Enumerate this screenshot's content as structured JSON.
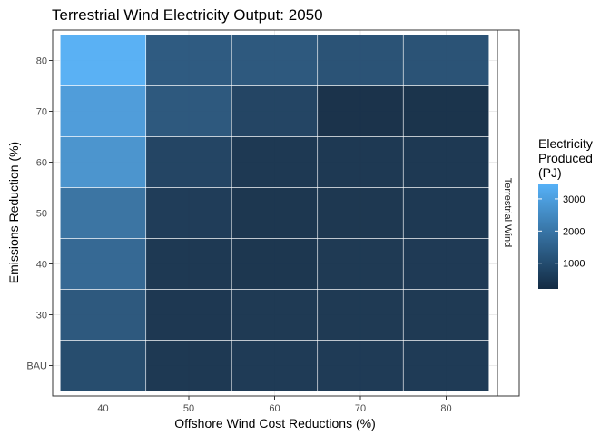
{
  "chart_data": {
    "type": "heatmap",
    "title": "Terrestrial Wind Electricity Output: 2050",
    "xlabel": "Offshore Wind Cost Reductions (%)",
    "ylabel": "Emissions Reduction (%)",
    "x_categories": [
      "40",
      "50",
      "60",
      "70",
      "80"
    ],
    "y_categories": [
      "BAU",
      "30",
      "40",
      "50",
      "60",
      "70",
      "80"
    ],
    "facet_label": "Terrestrial Wind",
    "grid": true,
    "legend": {
      "title_lines": [
        "Electricity",
        "Produced",
        "(PJ)"
      ],
      "ticks": [
        1000,
        2000,
        3000
      ],
      "range": [
        200,
        3450
      ],
      "low_color": "#132B43",
      "high_color": "#56B1F7",
      "placement": "right"
    },
    "values": [
      [
        900,
        400,
        450,
        450,
        450
      ],
      [
        1200,
        380,
        420,
        420,
        420
      ],
      [
        1600,
        400,
        350,
        420,
        430
      ],
      [
        1900,
        500,
        350,
        370,
        400
      ],
      [
        2700,
        700,
        400,
        400,
        400
      ],
      [
        2900,
        1200,
        700,
        250,
        270
      ],
      [
        3400,
        1250,
        1200,
        1050,
        1050
      ]
    ]
  }
}
